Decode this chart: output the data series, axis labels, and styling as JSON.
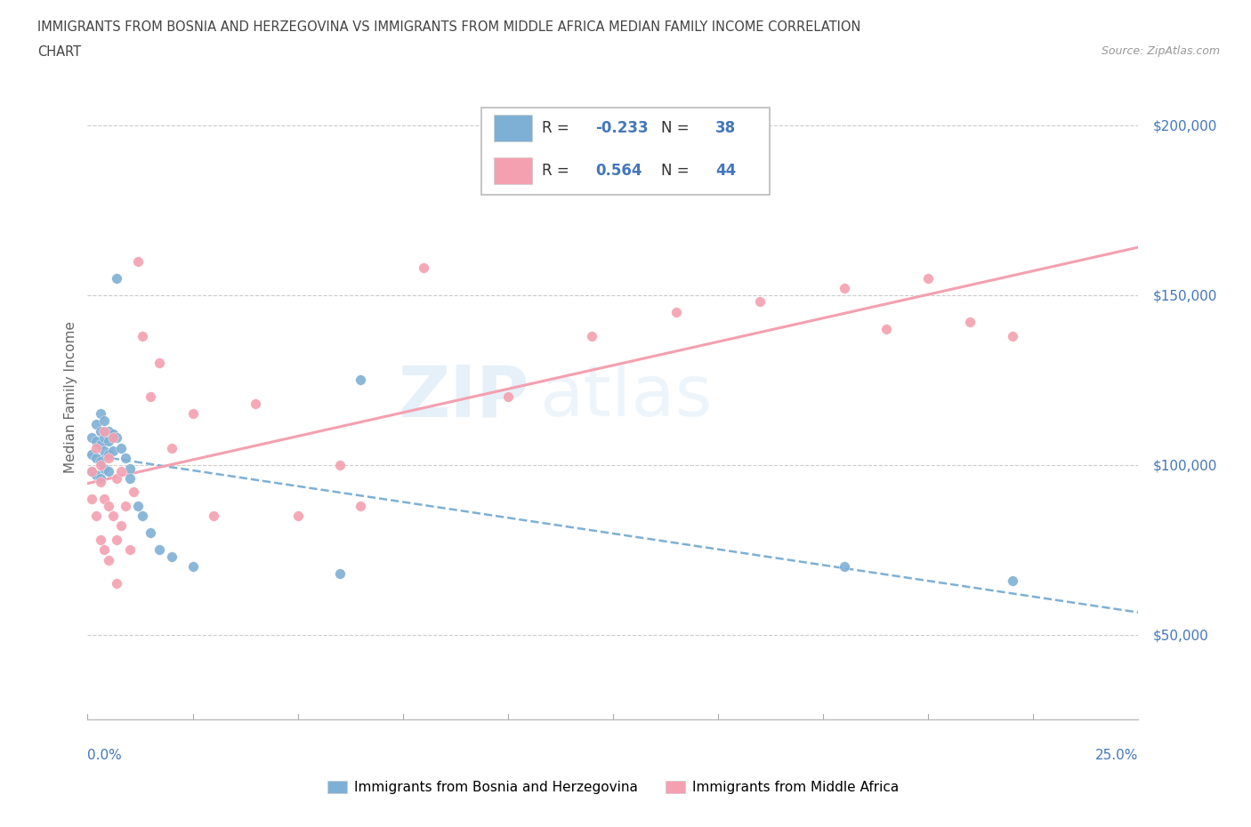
{
  "title_line1": "IMMIGRANTS FROM BOSNIA AND HERZEGOVINA VS IMMIGRANTS FROM MIDDLE AFRICA MEDIAN FAMILY INCOME CORRELATION",
  "title_line2": "CHART",
  "source_text": "Source: ZipAtlas.com",
  "watermark_zip": "ZIP",
  "watermark_atlas": "atlas",
  "ylabel": "Median Family Income",
  "y_ticks": [
    50000,
    100000,
    150000,
    200000
  ],
  "y_tick_labels": [
    "$50,000",
    "$100,000",
    "$150,000",
    "$200,000"
  ],
  "x_min": 0.0,
  "x_max": 0.25,
  "y_min": 25000,
  "y_max": 215000,
  "legend_label1": "Immigrants from Bosnia and Herzegovina",
  "legend_label2": "Immigrants from Middle Africa",
  "R1": -0.233,
  "N1": 38,
  "R2": 0.564,
  "N2": 44,
  "color1": "#7EB0D5",
  "color2": "#F4A0B0",
  "color_axis_text": "#4477BB",
  "grid_color": "#cccccc",
  "bosnia_x": [
    0.001,
    0.001,
    0.001,
    0.002,
    0.002,
    0.002,
    0.002,
    0.003,
    0.003,
    0.003,
    0.003,
    0.003,
    0.004,
    0.004,
    0.004,
    0.004,
    0.005,
    0.005,
    0.005,
    0.005,
    0.006,
    0.006,
    0.007,
    0.007,
    0.008,
    0.009,
    0.01,
    0.01,
    0.012,
    0.013,
    0.015,
    0.017,
    0.02,
    0.025,
    0.06,
    0.065,
    0.18,
    0.22
  ],
  "bosnia_y": [
    108000,
    103000,
    98000,
    112000,
    107000,
    102000,
    97000,
    115000,
    110000,
    106000,
    101000,
    96000,
    113000,
    108000,
    104000,
    99000,
    110000,
    107000,
    103000,
    98000,
    109000,
    104000,
    155000,
    108000,
    105000,
    102000,
    99000,
    96000,
    88000,
    85000,
    80000,
    75000,
    73000,
    70000,
    68000,
    125000,
    70000,
    66000
  ],
  "africa_x": [
    0.001,
    0.001,
    0.002,
    0.002,
    0.003,
    0.003,
    0.003,
    0.004,
    0.004,
    0.004,
    0.005,
    0.005,
    0.005,
    0.006,
    0.006,
    0.007,
    0.007,
    0.007,
    0.008,
    0.008,
    0.009,
    0.01,
    0.011,
    0.012,
    0.013,
    0.015,
    0.017,
    0.02,
    0.025,
    0.03,
    0.04,
    0.05,
    0.06,
    0.065,
    0.08,
    0.1,
    0.12,
    0.14,
    0.16,
    0.18,
    0.19,
    0.2,
    0.21,
    0.22
  ],
  "africa_y": [
    98000,
    90000,
    105000,
    85000,
    100000,
    95000,
    78000,
    110000,
    90000,
    75000,
    102000,
    88000,
    72000,
    108000,
    85000,
    96000,
    78000,
    65000,
    98000,
    82000,
    88000,
    75000,
    92000,
    160000,
    138000,
    120000,
    130000,
    105000,
    115000,
    85000,
    118000,
    85000,
    100000,
    88000,
    158000,
    120000,
    138000,
    145000,
    148000,
    152000,
    140000,
    155000,
    142000,
    138000
  ]
}
